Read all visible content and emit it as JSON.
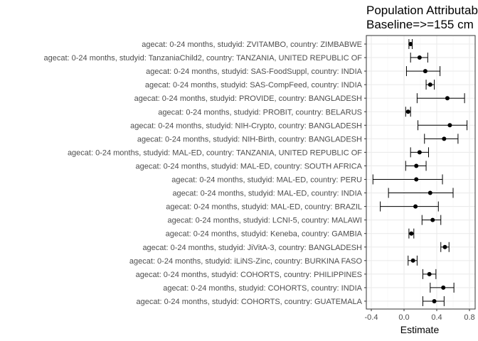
{
  "chart_data": {
    "type": "forest",
    "title": "Population Attributable",
    "subtitle": "Baseline=>=155 cm",
    "xlabel": "Estimate",
    "ylabel": "",
    "xlim": [
      -0.4,
      0.8
    ],
    "xticks": [
      "-0.4",
      "0.0",
      "0.4",
      "0.8"
    ],
    "xtick_values": [
      -0.4,
      0.0,
      0.4,
      0.8
    ],
    "grid": true,
    "colors": {
      "panel_border": "#333333",
      "grid_major": "#ebebeb",
      "grid_minor": "#f5f5f5",
      "marker": "#000000"
    },
    "rows": [
      {
        "label": "agecat: 0-24 months, studyid: ZVITAMBO, country: ZIMBABWE",
        "estimate": 0.08,
        "lower": 0.06,
        "upper": 0.1
      },
      {
        "label": "agecat: 0-24 months, studyid: TanzaniaChild2, country: TANZANIA, UNITED REPUBLIC OF",
        "estimate": 0.19,
        "lower": 0.08,
        "upper": 0.29
      },
      {
        "label": "agecat: 0-24 months, studyid: SAS-FoodSuppl, country: INDIA",
        "estimate": 0.26,
        "lower": 0.03,
        "upper": 0.44
      },
      {
        "label": "agecat: 0-24 months, studyid: SAS-CompFeed, country: INDIA",
        "estimate": 0.32,
        "lower": 0.27,
        "upper": 0.37
      },
      {
        "label": "agecat: 0-24 months, studyid: PROVIDE, country: BANGLADESH",
        "estimate": 0.53,
        "lower": 0.16,
        "upper": 0.74
      },
      {
        "label": "agecat: 0-24 months, studyid: PROBIT, country: BELARUS",
        "estimate": 0.05,
        "lower": 0.02,
        "upper": 0.08
      },
      {
        "label": "agecat: 0-24 months, studyid: NIH-Crypto, country: BANGLADESH",
        "estimate": 0.56,
        "lower": 0.17,
        "upper": 0.77
      },
      {
        "label": "agecat: 0-24 months, studyid: NIH-Birth, country: BANGLADESH",
        "estimate": 0.49,
        "lower": 0.25,
        "upper": 0.66
      },
      {
        "label": "agecat: 0-24 months, studyid: MAL-ED, country: TANZANIA, UNITED REPUBLIC OF",
        "estimate": 0.19,
        "lower": 0.08,
        "upper": 0.3
      },
      {
        "label": "agecat: 0-24 months, studyid: MAL-ED, country: SOUTH AFRICA",
        "estimate": 0.15,
        "lower": 0.02,
        "upper": 0.27
      },
      {
        "label": "agecat: 0-24 months, studyid: MAL-ED, country: PERU",
        "estimate": 0.15,
        "lower": -0.38,
        "upper": 0.47
      },
      {
        "label": "agecat: 0-24 months, studyid: MAL-ED, country: INDIA",
        "estimate": 0.32,
        "lower": -0.19,
        "upper": 0.6
      },
      {
        "label": "agecat: 0-24 months, studyid: MAL-ED, country: BRAZIL",
        "estimate": 0.14,
        "lower": -0.29,
        "upper": 0.42
      },
      {
        "label": "agecat: 0-24 months, studyid: LCNI-5, country: MALAWI",
        "estimate": 0.35,
        "lower": 0.22,
        "upper": 0.45
      },
      {
        "label": "agecat: 0-24 months, studyid: Keneba, country: GAMBIA",
        "estimate": 0.09,
        "lower": 0.06,
        "upper": 0.12
      },
      {
        "label": "agecat: 0-24 months, studyid: JiVitA-3, country: BANGLADESH",
        "estimate": 0.5,
        "lower": 0.45,
        "upper": 0.55
      },
      {
        "label": "agecat: 0-24 months, studyid: iLiNS-Zinc, country: BURKINA FASO",
        "estimate": 0.11,
        "lower": 0.05,
        "upper": 0.16
      },
      {
        "label": "agecat: 0-24 months, studyid: COHORTS, country: PHILIPPINES",
        "estimate": 0.31,
        "lower": 0.23,
        "upper": 0.39
      },
      {
        "label": "agecat: 0-24 months, studyid: COHORTS, country: INDIA",
        "estimate": 0.48,
        "lower": 0.32,
        "upper": 0.61
      },
      {
        "label": "agecat: 0-24 months, studyid: COHORTS, country: GUATEMALA",
        "estimate": 0.37,
        "lower": 0.23,
        "upper": 0.49
      }
    ]
  }
}
